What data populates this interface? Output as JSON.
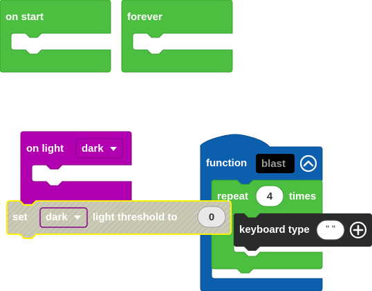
{
  "blocks": {
    "on_start": {
      "label": "on start"
    },
    "forever": {
      "label": "forever"
    },
    "on_light": {
      "label": "on light",
      "dropdown_value": "dark"
    },
    "set_threshold": {
      "label_set": "set",
      "dropdown_value": "dark",
      "label_rest": "light threshold to",
      "value": "0"
    },
    "function": {
      "label": "function",
      "name": "blast"
    },
    "repeat": {
      "label": "repeat",
      "count": "4",
      "suffix": "times"
    },
    "keyboard_type": {
      "label": "keyboard type",
      "text": "\" \""
    }
  },
  "colors": {
    "loops": "#4cbf40",
    "loops_border": "#3a9e31",
    "input": "#b000b0",
    "input_border": "#8a008a",
    "functions": "#0c5fad",
    "functions_border": "#0a4c8c",
    "keyboard": "#2b2b2b",
    "disabled_fill": "#c9c9b4",
    "selection": "#fff200"
  },
  "icons": [
    "triangle-down-icon",
    "collapse-chevron-icon",
    "plus-circle-icon"
  ]
}
